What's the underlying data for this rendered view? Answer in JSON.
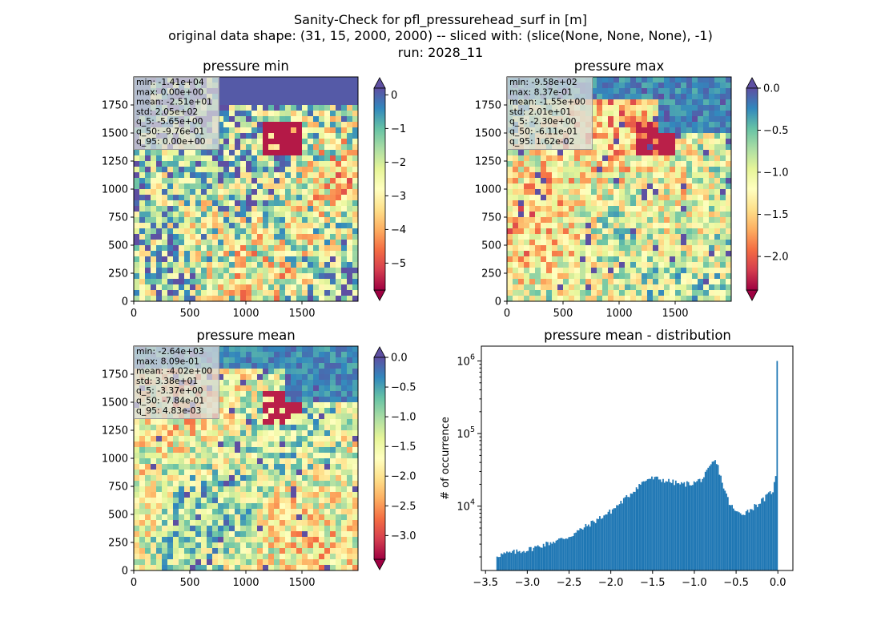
{
  "figure": {
    "suptitle_lines": [
      "Sanity-Check for pfl_pressurehead_surf in [m]",
      "original data shape: (31, 15, 2000, 2000) -- sliced with: (slice(None, None, None), -1)",
      "run: 2028_11"
    ]
  },
  "colors": {
    "spectral_stops": [
      "#9e0142",
      "#d53e4f",
      "#f46d43",
      "#fdae61",
      "#fee08b",
      "#ffffbf",
      "#e6f598",
      "#abdda4",
      "#66c2a5",
      "#3288bd",
      "#5e4fa2"
    ],
    "hist_bar": "#1f77b4",
    "stats_box_bg": "#d9d9d9"
  },
  "chart_data": [
    {
      "type": "heatmap",
      "title": "pressure min",
      "colormap": "Spectral",
      "xlim": [
        0,
        2000
      ],
      "ylim": [
        0,
        2000
      ],
      "x_ticks": [
        "0",
        "500",
        "1000",
        "1500"
      ],
      "y_ticks": [
        "0",
        "250",
        "500",
        "750",
        "1000",
        "1250",
        "1500",
        "1750"
      ],
      "clim": [
        -5.8,
        0.2
      ],
      "colorbar_ticks": [
        "0",
        "−1",
        "−2",
        "−3",
        "−4",
        "−5"
      ],
      "colorbar_tick_values": [
        0,
        -1,
        -2,
        -3,
        -4,
        -5
      ],
      "colorbar_extend": "both",
      "stats": [
        "min: -1.41e+04",
        "max: 0.00e+00",
        "mean: -2.51e+01",
        "std: 2.05e+02",
        "q_5: -5.65e+00",
        "q_50: -9.76e-01",
        "q_95: 0.00e+00"
      ]
    },
    {
      "type": "heatmap",
      "title": "pressure max",
      "colormap": "Spectral",
      "xlim": [
        0,
        2000
      ],
      "ylim": [
        0,
        2000
      ],
      "x_ticks": [
        "0",
        "500",
        "1000",
        "1500"
      ],
      "y_ticks": [
        "0",
        "250",
        "500",
        "750",
        "1000",
        "1250",
        "1500",
        "1750"
      ],
      "clim": [
        -2.4,
        0.0
      ],
      "colorbar_ticks": [
        "0.0",
        "−0.5",
        "−1.0",
        "−1.5",
        "−2.0"
      ],
      "colorbar_tick_values": [
        0,
        -0.5,
        -1.0,
        -1.5,
        -2.0
      ],
      "colorbar_extend": "both",
      "stats": [
        "min: -9.58e+02",
        "max: 8.37e-01",
        "mean: -1.55e+00",
        "std: 2.01e+01",
        "q_5: -2.30e+00",
        "q_50: -6.11e-01",
        "q_95: 1.62e-02"
      ]
    },
    {
      "type": "heatmap",
      "title": "pressure mean",
      "colormap": "Spectral",
      "xlim": [
        0,
        2000
      ],
      "ylim": [
        0,
        2000
      ],
      "x_ticks": [
        "0",
        "500",
        "1000",
        "1500"
      ],
      "y_ticks": [
        "0",
        "250",
        "500",
        "750",
        "1000",
        "1250",
        "1500",
        "1750"
      ],
      "clim": [
        -3.4,
        0.0
      ],
      "colorbar_ticks": [
        "0.0",
        "−0.5",
        "−1.0",
        "−1.5",
        "−2.0",
        "−2.5",
        "−3.0"
      ],
      "colorbar_tick_values": [
        0,
        -0.5,
        -1.0,
        -1.5,
        -2.0,
        -2.5,
        -3.0
      ],
      "colorbar_extend": "both",
      "stats": [
        "min: -2.64e+03",
        "max: 8.09e-01",
        "mean: -4.02e+00",
        "std: 3.38e+01",
        "q_5: -3.37e+00",
        "q_50: -7.84e-01",
        "q_95: 4.83e-03"
      ]
    },
    {
      "type": "bar",
      "title": "pressure mean - distribution",
      "ylabel": "# of occurrence",
      "xlabel": "",
      "y_scale": "log",
      "xlim": [
        -3.55,
        0.18
      ],
      "ylim": [
        1300,
        1600000
      ],
      "x_ticks": [
        "−3.5",
        "−3.0",
        "−2.5",
        "−2.0",
        "−1.5",
        "−1.0",
        "−0.5",
        "0.0"
      ],
      "x_tick_values": [
        -3.5,
        -3.0,
        -2.5,
        -2.0,
        -1.5,
        -1.0,
        -0.5,
        0.0
      ],
      "y_ticks": [
        {
          "base": "10",
          "exp": "4",
          "value": 10000
        },
        {
          "base": "10",
          "exp": "5",
          "value": 100000
        },
        {
          "base": "10",
          "exp": "6",
          "value": 1000000
        }
      ],
      "bin_range": [
        -3.37,
        0.0
      ],
      "bin_count": 200,
      "envelope": [
        [
          -3.37,
          2100
        ],
        [
          -3.0,
          2500
        ],
        [
          -2.5,
          3800
        ],
        [
          -2.0,
          8500
        ],
        [
          -1.8,
          13500
        ],
        [
          -1.65,
          20000
        ],
        [
          -1.55,
          24000
        ],
        [
          -1.45,
          24000
        ],
        [
          -1.3,
          22000
        ],
        [
          -1.15,
          20000
        ],
        [
          -1.0,
          21000
        ],
        [
          -0.9,
          24000
        ],
        [
          -0.82,
          33000
        ],
        [
          -0.76,
          43000
        ],
        [
          -0.72,
          36000
        ],
        [
          -0.65,
          18500
        ],
        [
          -0.58,
          11000
        ],
        [
          -0.5,
          8200
        ],
        [
          -0.42,
          8000
        ],
        [
          -0.35,
          8700
        ],
        [
          -0.25,
          10500
        ],
        [
          -0.15,
          13000
        ],
        [
          -0.06,
          16500
        ],
        [
          -0.02,
          26000
        ],
        [
          0.0,
          1000000
        ]
      ]
    }
  ]
}
